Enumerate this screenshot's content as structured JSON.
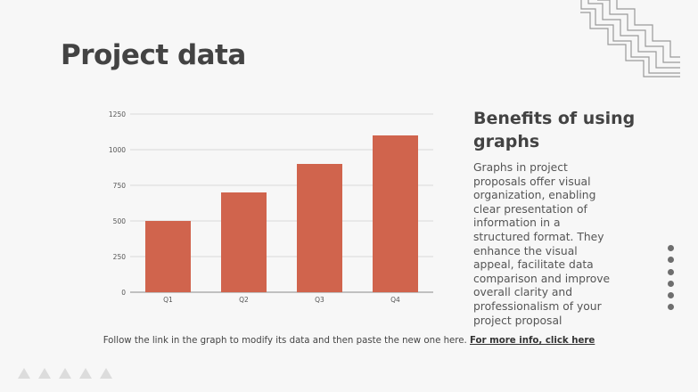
{
  "slide": {
    "title": "Project data"
  },
  "side_panel": {
    "heading": "Benefits of using graphs",
    "body": "Graphs in project proposals offer visual organization, enabling clear presentation of information in a structured format. They enhance the visual appeal, facilitate data comparison and improve overall clarity and professionalism of your project proposal"
  },
  "footer": {
    "text": "Follow the link in the graph to modify its data and then paste the new one here.",
    "link": "For more info, click here"
  },
  "colors": {
    "bar": "#d0644d",
    "grid": "#d9d9d9",
    "text": "#444444"
  },
  "chart_data": {
    "type": "bar",
    "categories": [
      "Q1",
      "Q2",
      "Q3",
      "Q4"
    ],
    "values": [
      500,
      700,
      900,
      1100
    ],
    "yticks": [
      0,
      250,
      500,
      750,
      1000,
      1250
    ],
    "ylim": [
      0,
      1250
    ],
    "title": "",
    "xlabel": "",
    "ylabel": "",
    "grid": true,
    "legend": "none"
  }
}
